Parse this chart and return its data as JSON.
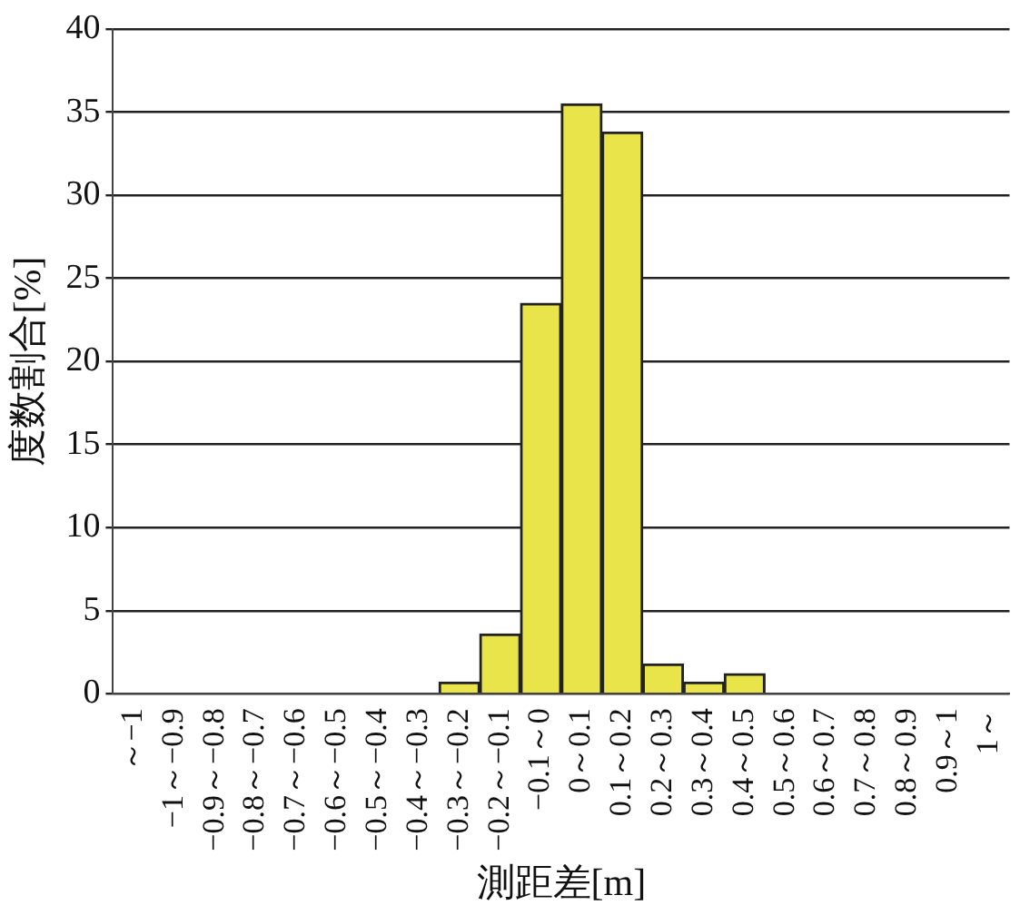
{
  "chart_data": {
    "type": "bar",
    "xlabel": "測距差[m]",
    "ylabel": "度数割合[%]",
    "categories": [
      "～−1",
      "−1～−0.9",
      "−0.9～−0.8",
      "−0.8～−0.7",
      "−0.7～−0.6",
      "−0.6～−0.5",
      "−0.5～−0.4",
      "−0.4～−0.3",
      "−0.3～−0.2",
      "−0.2～−0.1",
      "−0.1～0",
      "0～0.1",
      "0.1～0.2",
      "0.2～0.3",
      "0.3～0.4",
      "0.4～0.5",
      "0.5～0.6",
      "0.6～0.7",
      "0.7～0.8",
      "0.8～0.9",
      "0.9～1",
      "1～"
    ],
    "values": [
      0,
      0,
      0,
      0,
      0,
      0,
      0,
      0,
      0.7,
      3.6,
      23.5,
      35.5,
      33.8,
      1.8,
      0.7,
      1.2,
      0,
      0,
      0,
      0,
      0,
      0
    ],
    "color": "#e8e44a",
    "ylim": [
      0,
      40
    ],
    "yticks": [
      0,
      5,
      10,
      15,
      20,
      25,
      30,
      35,
      40
    ],
    "grid": "y",
    "legend": false
  }
}
